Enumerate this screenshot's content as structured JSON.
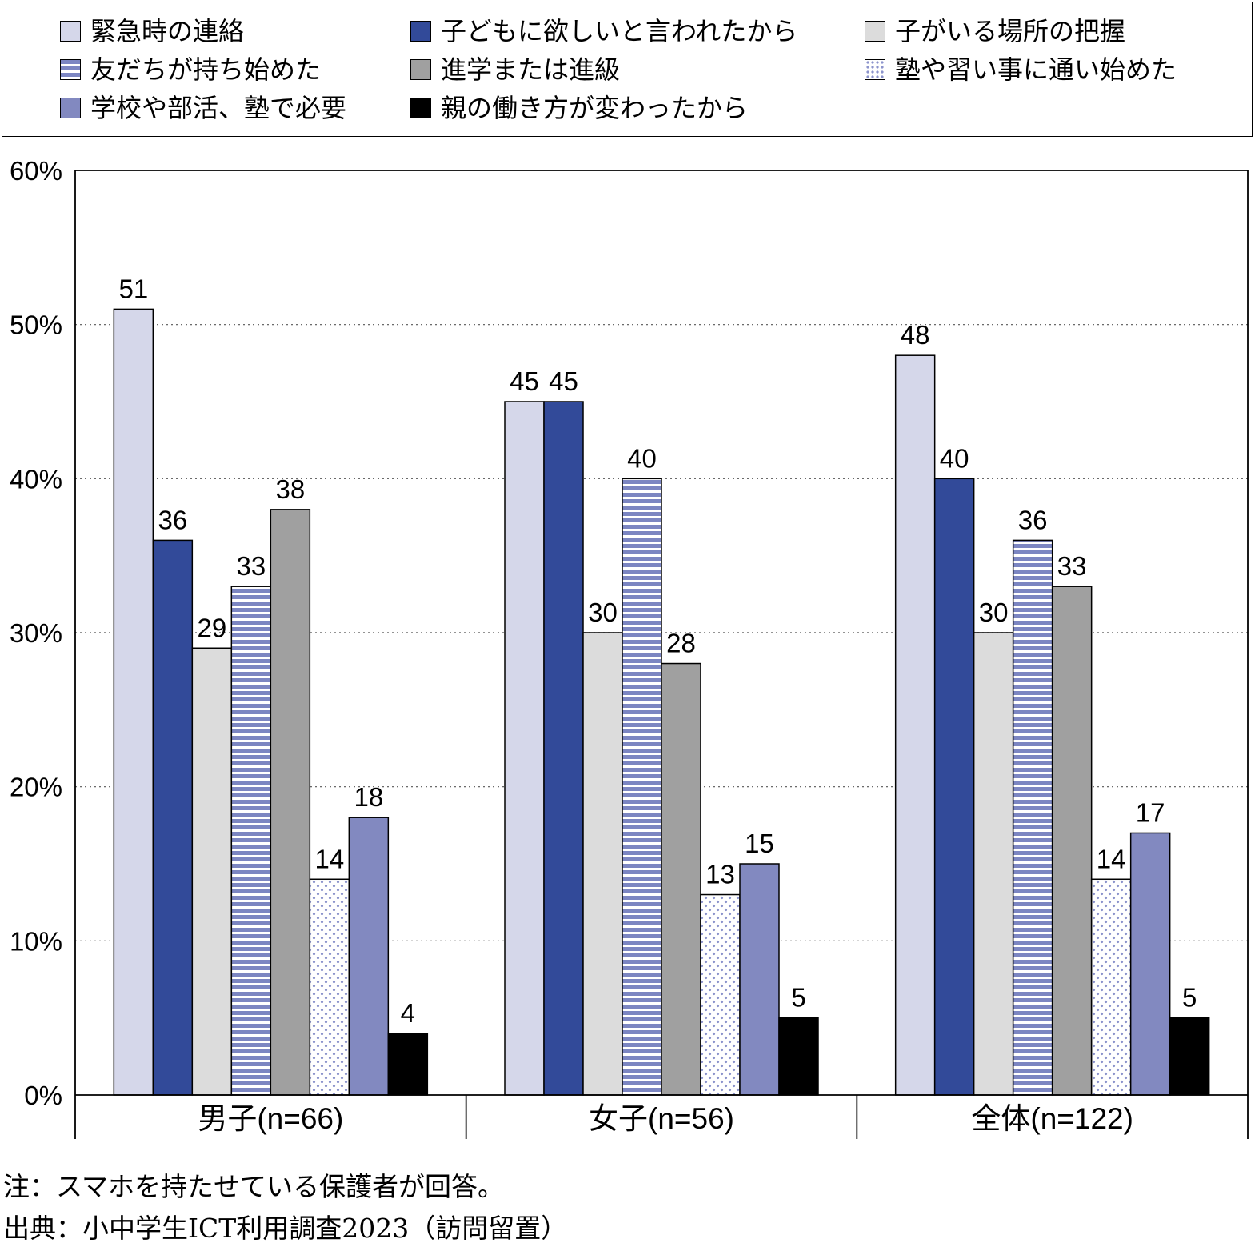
{
  "chart_data": {
    "type": "bar",
    "categories": [
      "男子(n=66)",
      "女子(n=56)",
      "全体(n=122)"
    ],
    "ylim": [
      0,
      60
    ],
    "yticks": [
      "0%",
      "10%",
      "20%",
      "30%",
      "40%",
      "50%",
      "60%"
    ],
    "grid": "horizontal dotted",
    "legend_position": "top",
    "series": [
      {
        "name": "緊急時の連絡",
        "values": [
          51,
          45,
          48
        ],
        "color": "#d5d7ea",
        "pattern": "solid"
      },
      {
        "name": "子どもに欲しいと言われたから",
        "values": [
          36,
          45,
          40
        ],
        "color": "#324a99",
        "pattern": "solid"
      },
      {
        "name": "子がいる場所の把握",
        "values": [
          29,
          30,
          30
        ],
        "color": "#dcdcdc",
        "pattern": "solid"
      },
      {
        "name": "友だちが持ち始めた",
        "values": [
          33,
          40,
          36
        ],
        "color": "#7c86c2",
        "pattern": "horizontal-stripes"
      },
      {
        "name": "進学または進級",
        "values": [
          38,
          28,
          33
        ],
        "color": "#a0a0a0",
        "pattern": "solid"
      },
      {
        "name": "塾や習い事に通い始めた",
        "values": [
          14,
          13,
          14
        ],
        "color": "#8c94cc",
        "pattern": "dots"
      },
      {
        "name": "学校や部活、塾で必要",
        "values": [
          18,
          15,
          17
        ],
        "color": "#8289c0",
        "pattern": "solid"
      },
      {
        "name": "親の働き方が変わったから",
        "values": [
          4,
          5,
          5
        ],
        "color": "#000000",
        "pattern": "solid"
      }
    ]
  },
  "notes": {
    "note": "注：スマホを持たせている保護者が回答。",
    "source": "出典：小中学生ICT利用調査2023（訪問留置）"
  }
}
